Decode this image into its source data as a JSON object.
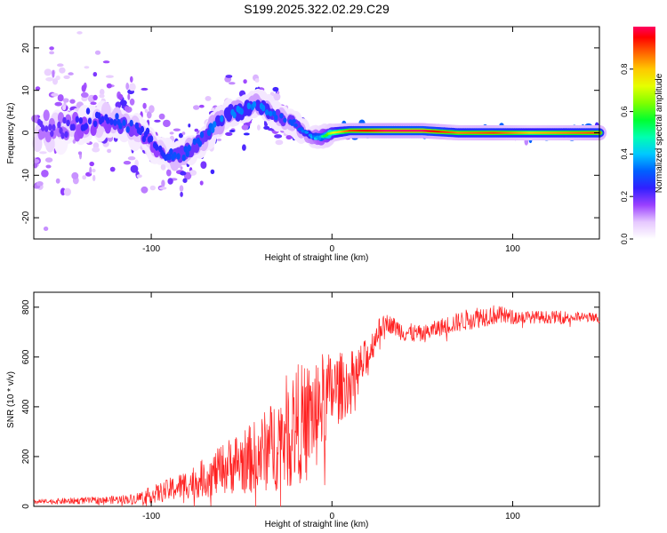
{
  "title": "S199.2025.322.02.29.C29",
  "spectrogram": {
    "type": "heatmap",
    "xlabel": "Height of straight line (km)",
    "ylabel": "Frequency (Hz)",
    "xlim": [
      -165,
      148
    ],
    "ylim": [
      -25,
      25
    ],
    "xticks": [
      -100,
      0,
      100
    ],
    "yticks": [
      -20,
      -10,
      0,
      10,
      20
    ],
    "colorbar": {
      "label": "Normalized spectral amplitude",
      "ticks": [
        0.0,
        0.2,
        0.4,
        0.6,
        0.8
      ],
      "range": [
        0,
        1
      ]
    },
    "ridge": {
      "x": [
        -150,
        -135,
        -125,
        -115,
        -105,
        -95,
        -88,
        -82,
        -76,
        -70,
        -64,
        -58,
        -52,
        -46,
        -40,
        -35,
        -30,
        -25,
        -20,
        -15,
        -10,
        -5,
        0,
        10,
        30,
        50,
        70,
        90,
        110,
        130,
        148
      ],
      "freq": [
        1,
        2,
        3,
        2,
        0,
        -4,
        -6,
        -5,
        -3,
        -1,
        2,
        4,
        5,
        6,
        7,
        5,
        4,
        3,
        2,
        0,
        -1,
        -1,
        0,
        0.5,
        0.5,
        0.5,
        0,
        0,
        0,
        0,
        0
      ],
      "amplitude": [
        0.2,
        0.25,
        0.25,
        0.3,
        0.25,
        0.25,
        0.3,
        0.3,
        0.3,
        0.3,
        0.35,
        0.35,
        0.35,
        0.35,
        0.35,
        0.35,
        0.3,
        0.3,
        0.3,
        0.35,
        0.4,
        0.5,
        0.7,
        0.9,
        1.0,
        1.0,
        0.85,
        0.9,
        0.8,
        0.85,
        0.9
      ],
      "spread_hz": [
        12,
        10,
        8,
        7,
        7,
        6,
        5,
        5,
        5,
        5,
        5,
        5,
        5,
        4,
        4,
        3,
        3,
        2.5,
        2,
        1.5,
        1.5,
        1.5,
        1.2,
        1.0,
        1.0,
        1.0,
        1.0,
        1.0,
        1.0,
        1.0,
        1.0
      ]
    }
  },
  "snr": {
    "type": "line",
    "xlabel": "Height of straight line (km)",
    "ylabel": "SNR (10 * v/v)",
    "xlim": [
      -165,
      148
    ],
    "ylim": [
      0,
      860
    ],
    "xticks": [
      -100,
      0,
      100
    ],
    "yticks": [
      0,
      200,
      400,
      600,
      800
    ],
    "color": "#ff2020",
    "envelope": {
      "x": [
        -165,
        -125,
        -110,
        -95,
        -80,
        -65,
        -55,
        -45,
        -35,
        -28,
        -20,
        -15,
        -10,
        -5,
        0,
        10,
        20,
        25,
        30,
        40,
        50,
        60,
        70,
        80,
        90,
        100,
        110,
        120,
        130,
        140,
        148
      ],
      "base": [
        18,
        25,
        30,
        55,
        90,
        130,
        170,
        190,
        230,
        280,
        330,
        340,
        380,
        420,
        460,
        500,
        600,
        700,
        740,
        700,
        690,
        720,
        740,
        760,
        770,
        760,
        760,
        760,
        760,
        760,
        755
      ],
      "noise": [
        10,
        15,
        20,
        40,
        60,
        90,
        120,
        140,
        170,
        220,
        250,
        230,
        220,
        200,
        160,
        120,
        80,
        50,
        35,
        40,
        35,
        35,
        40,
        45,
        40,
        30,
        25,
        25,
        25,
        20,
        20
      ]
    }
  }
}
